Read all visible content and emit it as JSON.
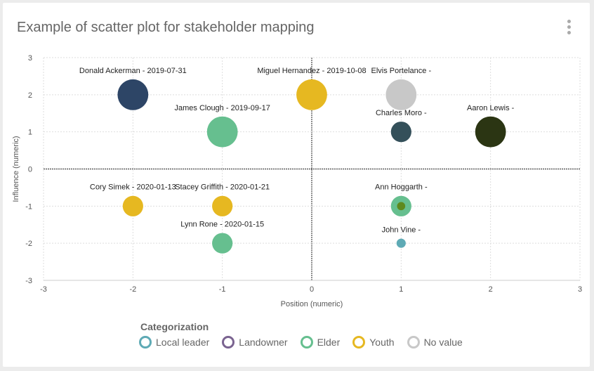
{
  "header": {
    "title": "Example of scatter plot for stakeholder mapping",
    "menu_icon": "more-vertical-icon"
  },
  "chart_data": {
    "type": "scatter",
    "xlabel": "Position (numeric)",
    "ylabel": "Influence (numeric)",
    "xlim": [
      -3,
      3
    ],
    "ylim": [
      -3,
      3
    ],
    "xticks": [
      "-3",
      "-2",
      "-1",
      "0",
      "1",
      "2",
      "3"
    ],
    "yticks": [
      "3",
      "2",
      "1",
      "0",
      "-1",
      "-2",
      "-3"
    ],
    "grid": true,
    "legend_title": "Categorization",
    "legend_placement": "bottom",
    "legend": [
      {
        "name": "Local leader",
        "color": "#5eaab5"
      },
      {
        "name": "Landowner",
        "color": "#7a6390"
      },
      {
        "name": "Elder",
        "color": "#66bf8f"
      },
      {
        "name": "Youth",
        "color": "#e6b821"
      },
      {
        "name": "No value",
        "color": "#c8c8c8"
      }
    ],
    "points": [
      {
        "label": "Donald Ackerman - 2019-07-31",
        "x": -2,
        "y": 2,
        "size": 3,
        "color": "#2d4566"
      },
      {
        "label": "Miguel Hernandez - 2019-10-08",
        "x": 0,
        "y": 2,
        "size": 3,
        "color": "#e6b821"
      },
      {
        "label": "Elvis Portelance -",
        "x": 1,
        "y": 2,
        "size": 3,
        "color": "#c8c8c8"
      },
      {
        "label": "James Clough - 2019-09-17",
        "x": -1,
        "y": 1,
        "size": 3,
        "color": "#66bf8f"
      },
      {
        "label": "Charles Moro -",
        "x": 1,
        "y": 1,
        "size": 2,
        "color": "#34505a"
      },
      {
        "label": "Aaron Lewis -",
        "x": 2,
        "y": 1,
        "size": 3,
        "color": "#2b3513"
      },
      {
        "label": "Cory Simek - 2020-01-13",
        "x": -2,
        "y": -1,
        "size": 2,
        "color": "#e6b821"
      },
      {
        "label": "Stacey Griffith - 2020-01-21",
        "x": -1,
        "y": -1,
        "size": 2,
        "color": "#e6b821"
      },
      {
        "label": "Ann Hoggarth -",
        "x": 1,
        "y": -1,
        "size": 2,
        "color": "#66bf8f"
      },
      {
        "label": "",
        "x": 1,
        "y": -1,
        "size": 0.8,
        "color": "#5e8a1e"
      },
      {
        "label": "Lynn Rone - 2020-01-15",
        "x": -1,
        "y": -2,
        "size": 2,
        "color": "#66bf8f"
      },
      {
        "label": "John Vine -",
        "x": 1,
        "y": -2,
        "size": 0.9,
        "color": "#5eaab5"
      }
    ]
  }
}
